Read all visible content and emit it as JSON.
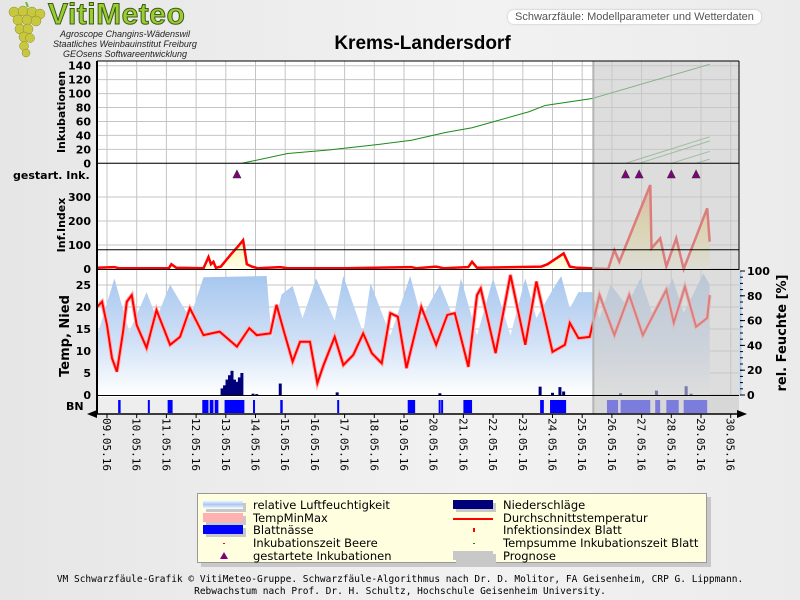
{
  "header": {
    "logo_title": "VitiMeteo",
    "logo_lines": [
      "Agroscope Changins-Wädenswil",
      "Staatliches Weinbauinstitut Freiburg",
      "GEOsens Softwareentwicklung"
    ],
    "badge": "Schwarzfäule: Modellparameter und Wetterdaten",
    "title": "Krems-Landersdorf"
  },
  "colors": {
    "inkubation": "#1a8a1a",
    "inkubation_forecast": "#5aa85a",
    "infindex": "#ff0000",
    "temperature": "#ff0000",
    "tempminmax": "#ffb0b0",
    "humidity": "#a8c8ee",
    "precipitation": "#00007a",
    "leaf_wetness": "#0000ff",
    "triangle": "#800080",
    "forecast": "#c8c8c8",
    "legend_bg": "#ffffe0"
  },
  "chart_data": {
    "type": "line",
    "title": "Krems-Landersdorf",
    "x_range": [
      "2016-05-08T16:00",
      "2016-05-30T08:00"
    ],
    "x_ticks": [
      "09.05.16",
      "10.05.16",
      "11.05.16",
      "12.05.16",
      "13.05.16",
      "14.05.16",
      "15.05.16",
      "16.05.16",
      "17.05.16",
      "18.05.16",
      "19.05.16",
      "20.05.16",
      "21.05.16",
      "22.05.16",
      "23.05.16",
      "24.05.16",
      "25.05.16",
      "26.05.16",
      "27.05.16",
      "28.05.16",
      "29.05.16",
      "30.05.16"
    ],
    "forecast_start": "2016-05-25T09:00",
    "grid": true,
    "panels": {
      "inkubationen": {
        "ylabel": "Inkubationen",
        "ylim": [
          0,
          140
        ],
        "ticks": [
          0,
          20,
          40,
          60,
          80,
          100,
          120,
          140
        ]
      },
      "gestartet": {
        "ylabel": "gestart. Ink."
      },
      "infindex": {
        "ylabel": "Inf.Index",
        "ylim": [
          0,
          440
        ],
        "ticks": [
          0,
          100,
          200,
          300
        ],
        "threshold": 80
      },
      "temp": {
        "ylabel": "Temp, Nied",
        "ylim": [
          0,
          28
        ],
        "ticks": [
          0,
          5,
          10,
          15,
          20,
          25
        ]
      },
      "humidity": {
        "ylabel": "rel. Feuchte [%]",
        "ylim": [
          0,
          100
        ],
        "ticks": [
          0,
          20,
          40,
          60,
          80,
          100
        ]
      },
      "bn": {
        "ylabel": "BN"
      }
    },
    "inkubation_series": [
      {
        "points": [
          [
            "2016-05-13T13:00",
            0
          ],
          [
            "2016-05-15T02:00",
            14
          ],
          [
            "2016-05-16T11:00",
            19
          ],
          [
            "2016-05-18T03:00",
            27
          ],
          [
            "2016-05-19T06:00",
            33
          ],
          [
            "2016-05-20T09:00",
            44
          ],
          [
            "2016-05-21T07:00",
            51
          ],
          [
            "2016-05-22T01:00",
            60
          ],
          [
            "2016-05-23T05:00",
            74
          ],
          [
            "2016-05-23T18:00",
            83
          ],
          [
            "2016-05-25T08:00",
            93
          ],
          [
            "2016-05-29T07:00",
            142
          ]
        ]
      },
      {
        "points": [
          [
            "2016-05-26T11:00",
            0
          ],
          [
            "2016-05-29T07:00",
            38
          ]
        ]
      },
      {
        "points": [
          [
            "2016-05-26T22:00",
            0
          ],
          [
            "2016-05-29T07:00",
            32
          ]
        ]
      },
      {
        "points": [
          [
            "2016-05-28T00:00",
            0
          ],
          [
            "2016-05-29T07:00",
            17
          ]
        ]
      },
      {
        "points": [
          [
            "2016-05-28T20:00",
            0
          ],
          [
            "2016-05-29T07:00",
            6
          ]
        ]
      }
    ],
    "started_incubations": [
      "2016-05-13T09:00",
      "2016-05-26T11:00",
      "2016-05-26T22:00",
      "2016-05-28T00:00",
      "2016-05-28T20:00"
    ],
    "infindex": [
      [
        "2016-05-08T16:00",
        5
      ],
      [
        "2016-05-09T06:00",
        8
      ],
      [
        "2016-05-09T10:00",
        3
      ],
      [
        "2016-05-11T02:00",
        3
      ],
      [
        "2016-05-11T04:00",
        20
      ],
      [
        "2016-05-11T08:00",
        5
      ],
      [
        "2016-05-12T06:00",
        3
      ],
      [
        "2016-05-12T10:00",
        50
      ],
      [
        "2016-05-12T12:00",
        20
      ],
      [
        "2016-05-12T14:00",
        30
      ],
      [
        "2016-05-12T16:00",
        5
      ],
      [
        "2016-05-12T20:00",
        10
      ],
      [
        "2016-05-13T04:00",
        60
      ],
      [
        "2016-05-13T10:00",
        95
      ],
      [
        "2016-05-13T14:00",
        120
      ],
      [
        "2016-05-13T17:00",
        20
      ],
      [
        "2016-05-13T21:00",
        10
      ],
      [
        "2016-05-14T02:00",
        3
      ],
      [
        "2016-05-14T20:00",
        8
      ],
      [
        "2016-05-15T02:00",
        3
      ],
      [
        "2016-05-17T00:00",
        3
      ],
      [
        "2016-05-19T06:00",
        8
      ],
      [
        "2016-05-19T10:00",
        3
      ],
      [
        "2016-05-20T02:00",
        10
      ],
      [
        "2016-05-20T08:00",
        3
      ],
      [
        "2016-05-21T04:00",
        8
      ],
      [
        "2016-05-21T07:00",
        30
      ],
      [
        "2016-05-21T11:00",
        5
      ],
      [
        "2016-05-23T15:00",
        10
      ],
      [
        "2016-05-23T20:00",
        20
      ],
      [
        "2016-05-24T09:00",
        65
      ],
      [
        "2016-05-24T14:00",
        10
      ],
      [
        "2016-05-24T20:00",
        5
      ],
      [
        "2016-05-25T21:00",
        0
      ],
      [
        "2016-05-26T02:00",
        79
      ],
      [
        "2016-05-26T06:00",
        30
      ],
      [
        "2016-05-27T07:00",
        350
      ],
      [
        "2016-05-27T08:00",
        86
      ],
      [
        "2016-05-27T15:00",
        128
      ],
      [
        "2016-05-27T20:00",
        10
      ],
      [
        "2016-05-28T04:00",
        128
      ],
      [
        "2016-05-28T10:00",
        0
      ],
      [
        "2016-05-29T05:00",
        253
      ],
      [
        "2016-05-29T07:00",
        114
      ]
    ],
    "temperature_mean": [
      [
        "2016-05-08T16:00",
        20
      ],
      [
        "2016-05-08T20:00",
        21.2
      ],
      [
        "2016-05-09T00:00",
        15.9
      ],
      [
        "2016-05-09T04:00",
        8.4
      ],
      [
        "2016-05-09T08:00",
        5.3
      ],
      [
        "2016-05-09T13:00",
        14.4
      ],
      [
        "2016-05-09T16:00",
        21.2
      ],
      [
        "2016-05-09T20:00",
        22.7
      ],
      [
        "2016-05-10T00:00",
        15.9
      ],
      [
        "2016-05-10T08:00",
        10.7
      ],
      [
        "2016-05-10T16:00",
        19.3
      ],
      [
        "2016-05-11T03:00",
        11.4
      ],
      [
        "2016-05-11T11:00",
        13.2
      ],
      [
        "2016-05-11T19:00",
        19.7
      ],
      [
        "2016-05-12T06:00",
        13.6
      ],
      [
        "2016-05-12T19:00",
        14.4
      ],
      [
        "2016-05-13T09:00",
        11
      ],
      [
        "2016-05-13T19:00",
        15.2
      ],
      [
        "2016-05-14T01:00",
        13.6
      ],
      [
        "2016-05-14T12:00",
        14
      ],
      [
        "2016-05-14T17:00",
        20.5
      ],
      [
        "2016-05-14T23:00",
        14.4
      ],
      [
        "2016-05-15T06:00",
        7.6
      ],
      [
        "2016-05-15T12:00",
        12.1
      ],
      [
        "2016-05-15T20:00",
        12.1
      ],
      [
        "2016-05-16T02:00",
        2.7
      ],
      [
        "2016-05-16T07:00",
        6.8
      ],
      [
        "2016-05-16T16:00",
        13.2
      ],
      [
        "2016-05-16T23:00",
        6.8
      ],
      [
        "2016-05-17T07:00",
        9.1
      ],
      [
        "2016-05-17T15:00",
        14
      ],
      [
        "2016-05-17T22:00",
        9.5
      ],
      [
        "2016-05-18T06:00",
        7.2
      ],
      [
        "2016-05-18T13:00",
        18.6
      ],
      [
        "2016-05-18T19:00",
        17.8
      ],
      [
        "2016-05-19T02:00",
        6.1
      ],
      [
        "2016-05-19T14:00",
        20
      ],
      [
        "2016-05-20T02:00",
        11.4
      ],
      [
        "2016-05-20T11:00",
        18.2
      ],
      [
        "2016-05-20T17:00",
        18.6
      ],
      [
        "2016-05-21T04:00",
        6.4
      ],
      [
        "2016-05-21T11:00",
        22.7
      ],
      [
        "2016-05-21T14:00",
        24.2
      ],
      [
        "2016-05-22T02:00",
        9.5
      ],
      [
        "2016-05-22T14:00",
        27.3
      ],
      [
        "2016-05-23T02:00",
        11.4
      ],
      [
        "2016-05-23T11:00",
        25.8
      ],
      [
        "2016-05-24T00:00",
        9.8
      ],
      [
        "2016-05-24T10:00",
        11.4
      ],
      [
        "2016-05-24T14:00",
        16.4
      ],
      [
        "2016-05-24T21:00",
        12.9
      ],
      [
        "2016-05-25T06:00",
        13.2
      ],
      [
        "2016-05-25T14:00",
        22.7
      ],
      [
        "2016-05-26T02:00",
        13.6
      ],
      [
        "2016-05-26T14:00",
        22.7
      ],
      [
        "2016-05-27T01:00",
        13.6
      ],
      [
        "2016-05-27T20:00",
        23.9
      ],
      [
        "2016-05-28T02:00",
        16.4
      ],
      [
        "2016-05-28T11:00",
        24.6
      ],
      [
        "2016-05-28T20:00",
        15.5
      ],
      [
        "2016-05-29T05:00",
        17.5
      ],
      [
        "2016-05-29T07:00",
        22.7
      ]
    ],
    "humidity": [
      [
        "2016-05-08T16:00",
        48
      ],
      [
        "2016-05-09T06:00",
        94
      ],
      [
        "2016-05-09T18:00",
        51
      ],
      [
        "2016-05-10T08:00",
        83
      ],
      [
        "2016-05-10T16:00",
        62
      ],
      [
        "2016-05-11T03:00",
        89
      ],
      [
        "2016-05-11T19:00",
        62
      ],
      [
        "2016-05-12T06:00",
        95
      ],
      [
        "2016-05-14T09:00",
        96
      ],
      [
        "2016-05-14T13:00",
        46
      ],
      [
        "2016-05-14T21:00",
        81
      ],
      [
        "2016-05-15T06:00",
        88
      ],
      [
        "2016-05-15T14:00",
        62
      ],
      [
        "2016-05-16T01:00",
        94
      ],
      [
        "2016-05-16T16:00",
        60
      ],
      [
        "2016-05-16T23:00",
        96
      ],
      [
        "2016-05-17T15:00",
        50
      ],
      [
        "2016-05-17T21:00",
        90
      ],
      [
        "2016-05-18T13:00",
        48
      ],
      [
        "2016-05-19T05:00",
        96
      ],
      [
        "2016-05-19T14:00",
        62
      ],
      [
        "2016-05-20T05:00",
        89
      ],
      [
        "2016-05-20T16:00",
        62
      ],
      [
        "2016-05-20T22:00",
        94
      ],
      [
        "2016-05-21T11:00",
        48
      ],
      [
        "2016-05-22T00:00",
        94
      ],
      [
        "2016-05-22T14:00",
        48
      ],
      [
        "2016-05-23T02:00",
        94
      ],
      [
        "2016-05-23T11:00",
        62
      ],
      [
        "2016-05-23T23:00",
        83
      ],
      [
        "2016-05-24T07:00",
        96
      ],
      [
        "2016-05-24T14:00",
        70
      ],
      [
        "2016-05-24T21:00",
        83
      ],
      [
        "2016-05-25T08:00",
        83
      ],
      [
        "2016-05-25T14:00",
        62
      ],
      [
        "2016-05-25T23:00",
        89
      ],
      [
        "2016-05-26T12:00",
        72
      ],
      [
        "2016-05-26T23:00",
        94
      ],
      [
        "2016-05-27T10:00",
        62
      ],
      [
        "2016-05-28T01:00",
        94
      ],
      [
        "2016-05-28T10:00",
        66
      ],
      [
        "2016-05-29T02:00",
        98
      ],
      [
        "2016-05-29T07:00",
        89
      ]
    ],
    "precipitation": [
      [
        "2016-05-12T21:00",
        1.5
      ],
      [
        "2016-05-12T23:00",
        2.2
      ],
      [
        "2016-05-13T01:00",
        3.5
      ],
      [
        "2016-05-13T03:00",
        4.5
      ],
      [
        "2016-05-13T05:00",
        5.5
      ],
      [
        "2016-05-13T07:00",
        3.5
      ],
      [
        "2016-05-13T09:00",
        3.0
      ],
      [
        "2016-05-13T11:00",
        4.0
      ],
      [
        "2016-05-13T13:00",
        5.0
      ],
      [
        "2016-05-13T22:00",
        0.3
      ],
      [
        "2016-05-14T01:00",
        0.2
      ],
      [
        "2016-05-14T20:00",
        2.6
      ],
      [
        "2016-05-16T18:00",
        0.6
      ],
      [
        "2016-05-20T05:00",
        0.4
      ],
      [
        "2016-05-23T14:00",
        1.9
      ],
      [
        "2016-05-24T00:00",
        0.5
      ],
      [
        "2016-05-24T06:00",
        1.8
      ],
      [
        "2016-05-24T09:00",
        0.8
      ],
      [
        "2016-05-26T07:00",
        0.4
      ],
      [
        "2016-05-27T12:00",
        1.0
      ],
      [
        "2016-05-28T12:00",
        2.0
      ],
      [
        "2016-05-28T16:00",
        0.3
      ]
    ],
    "leaf_wetness": [
      [
        "2016-05-09T09:00",
        "2016-05-09T11:00"
      ],
      [
        "2016-05-10T09:00",
        "2016-05-10T10:00"
      ],
      [
        "2016-05-11T01:00",
        "2016-05-11T05:00"
      ],
      [
        "2016-05-12T05:00",
        "2016-05-12T10:00"
      ],
      [
        "2016-05-12T11:00",
        "2016-05-12T14:00"
      ],
      [
        "2016-05-12T15:00",
        "2016-05-12T18:00"
      ],
      [
        "2016-05-12T23:00",
        "2016-05-13T15:00"
      ],
      [
        "2016-05-13T22:00",
        "2016-05-13T23:00"
      ],
      [
        "2016-05-14T20:00",
        "2016-05-14T22:00"
      ],
      [
        "2016-05-16T18:00",
        "2016-05-16T19:00"
      ],
      [
        "2016-05-19T03:00",
        "2016-05-19T09:00"
      ],
      [
        "2016-05-20T04:00",
        "2016-05-20T05:00"
      ],
      [
        "2016-05-20T06:00",
        "2016-05-20T07:00"
      ],
      [
        "2016-05-21T00:00",
        "2016-05-21T07:00"
      ],
      [
        "2016-05-23T14:00",
        "2016-05-23T17:00"
      ],
      [
        "2016-05-23T22:00",
        "2016-05-24T11:00"
      ],
      [
        "2016-05-25T20:00",
        "2016-05-26T05:00"
      ],
      [
        "2016-05-26T07:00",
        "2016-05-27T07:00"
      ],
      [
        "2016-05-27T11:00",
        "2016-05-27T15:00"
      ],
      [
        "2016-05-27T20:00",
        "2016-05-28T06:00"
      ],
      [
        "2016-05-28T10:00",
        "2016-05-29T05:00"
      ]
    ]
  },
  "legend": {
    "items": [
      {
        "label": "relative Luftfeuchtigkeit",
        "swatch": "humidity"
      },
      {
        "label": "Niederschläge",
        "swatch": "precipitation"
      },
      {
        "label": "TempMinMax",
        "swatch": "tempminmax"
      },
      {
        "label": "Durchschnittstemperatur",
        "swatch": "line"
      },
      {
        "label": "Blattnässe",
        "swatch": "leaf_wetness"
      },
      {
        "label": "Infektionsindex Blatt",
        "swatch": "redtick"
      },
      {
        "label": "Inkubationszeit Beere",
        "swatch": "reddot"
      },
      {
        "label": "Tempsumme Inkubationszeit Blatt",
        "swatch": "greendot"
      },
      {
        "label": "gestartete Inkubationen",
        "swatch": "triangle"
      },
      {
        "label": "Prognose",
        "swatch": "forecast"
      }
    ]
  },
  "footer": {
    "line1": "VM Schwarzfäule-Grafik © VitiMeteo-Gruppe. Schwarzfäule-Algorithmus nach Dr. D. Molitor, FA Geisenheim, CRP G. Lippmann.",
    "line2": "Rebwachstum nach Prof. Dr. H. Schultz, Hochschule Geisenheim University."
  }
}
